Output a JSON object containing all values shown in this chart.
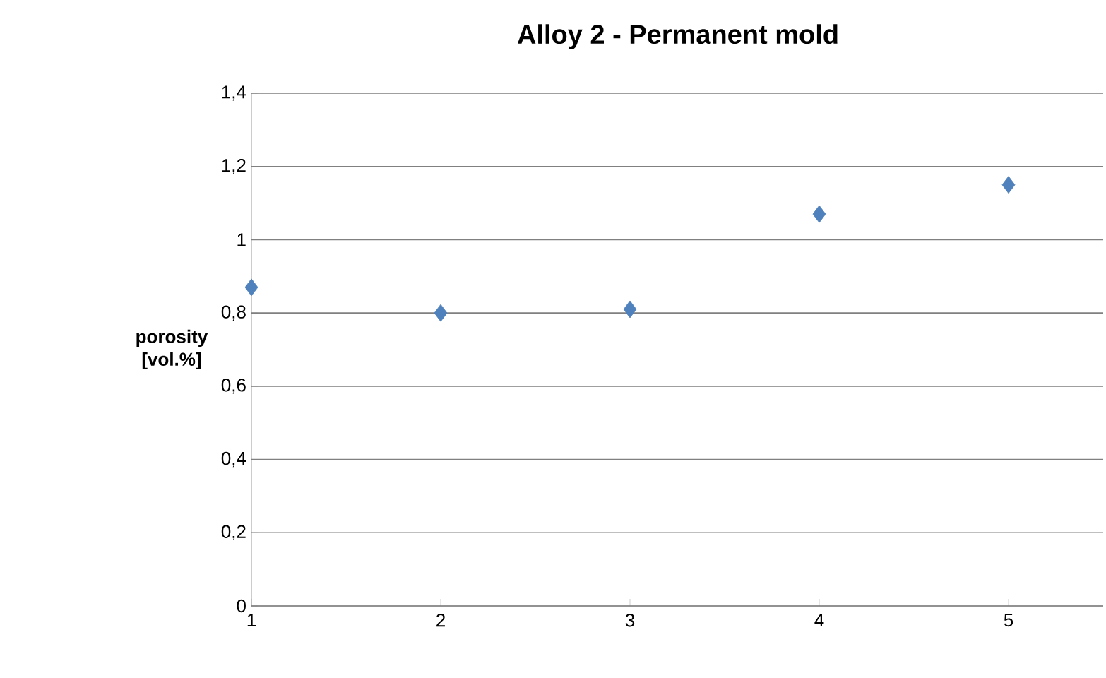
{
  "chart_data": {
    "type": "scatter",
    "title": "Alloy 2 - Permanent mold",
    "ylabel": "porosity [vol.%]",
    "x": [
      1,
      2,
      3,
      4,
      5
    ],
    "values": [
      0.87,
      0.8,
      0.81,
      1.07,
      1.15
    ],
    "color": "#4f81bd",
    "marker": "diamond",
    "grid": "y",
    "xlim": [
      1,
      5.5
    ],
    "xticks": [
      1,
      2,
      3,
      4,
      5
    ],
    "ylim": [
      0,
      1.4
    ],
    "yticks": [
      0,
      {
        "value": 0.2,
        "label": "0,2"
      },
      {
        "value": 0.4,
        "label": "0,4"
      },
      {
        "value": 0.6,
        "label": "0,6"
      },
      {
        "value": 0.8,
        "label": "0,8"
      },
      1,
      {
        "value": 1.2,
        "label": "1,2"
      },
      {
        "value": 1.4,
        "label": "1,4"
      }
    ]
  }
}
